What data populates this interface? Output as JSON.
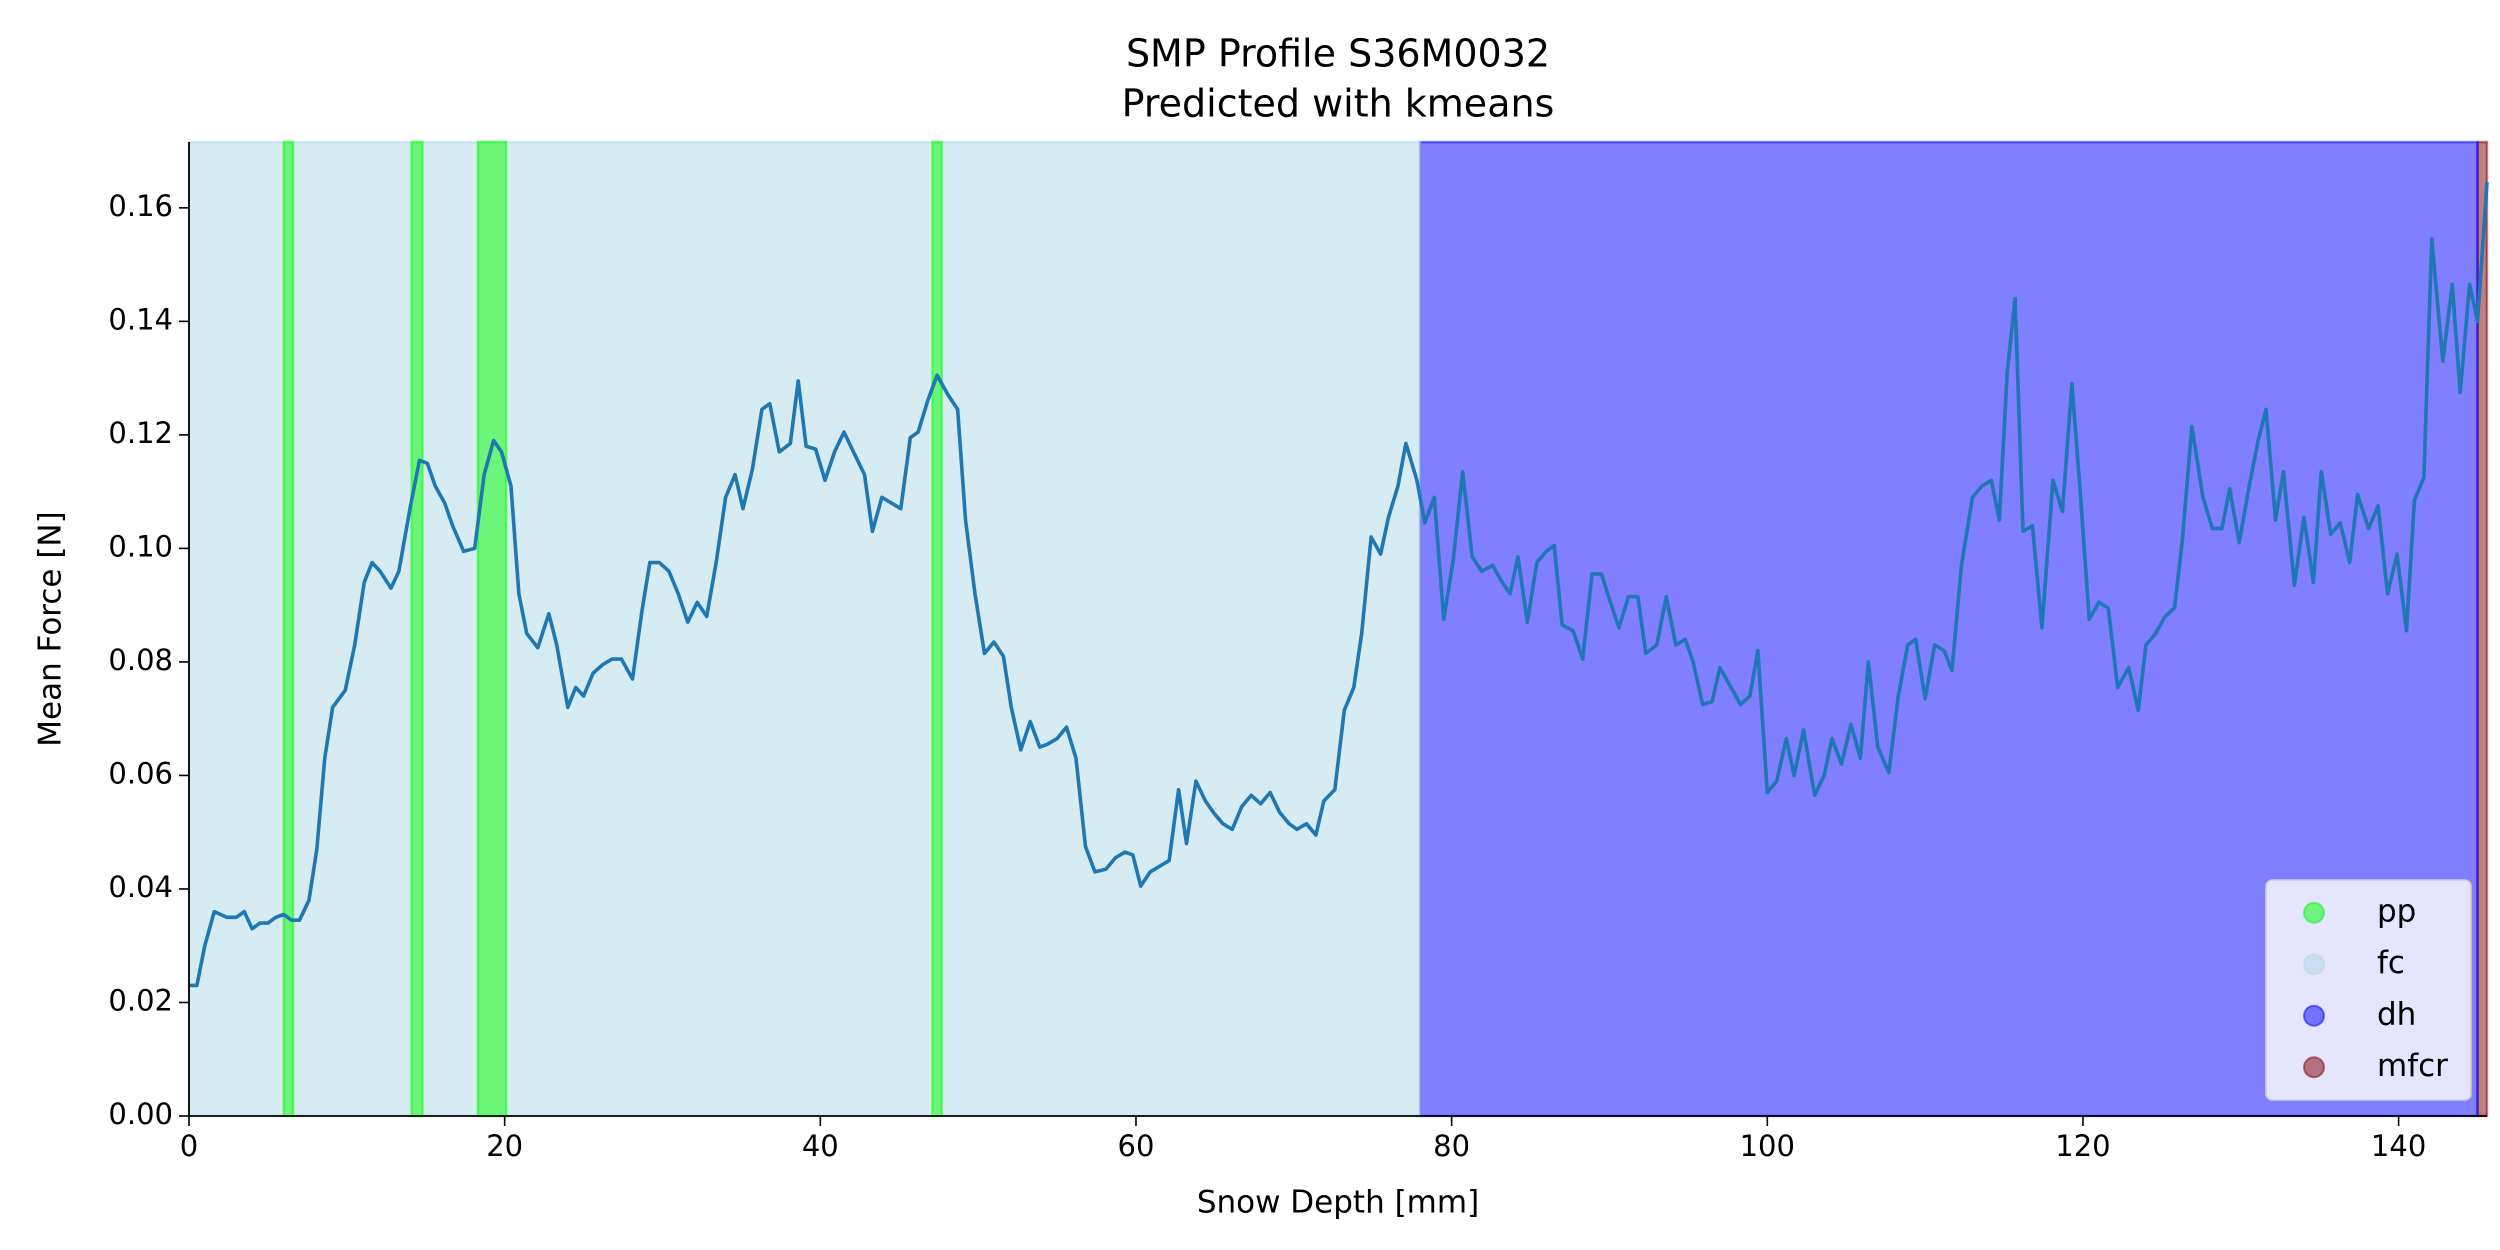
{
  "chart_data": {
    "type": "line",
    "title": "SMP Profile S36M0032",
    "subtitle": "Predicted with kmeans",
    "x_label": "Snow Depth [mm]",
    "y_label": "Mean Force [N]",
    "color": "#1f77b4",
    "legend_position": "lower right",
    "span_alpha": 0.5,
    "xlim": [
      0,
      145.6
    ],
    "ylim": [
      0,
      0.1716
    ],
    "xticks": [
      0,
      20,
      40,
      60,
      80,
      100,
      120,
      140
    ],
    "yticks": [
      {
        "value": 0,
        "label": "0.00"
      },
      {
        "value": 0.02,
        "label": "0.02"
      },
      {
        "value": 0.04,
        "label": "0.04"
      },
      {
        "value": 0.06,
        "label": "0.06"
      },
      {
        "value": 0.08,
        "label": "0.08"
      },
      {
        "value": 0.1,
        "label": "0.10"
      },
      {
        "value": 0.12,
        "label": "0.12"
      },
      {
        "value": 0.14,
        "label": "0.14"
      },
      {
        "value": 0.16,
        "label": "0.16"
      }
    ],
    "classes": [
      {
        "name": "pp",
        "color": "#00ff00",
        "spans": [
          [
            6.0,
            6.6
          ],
          [
            14.1,
            14.8
          ],
          [
            18.3,
            20.1
          ],
          [
            47.1,
            47.7
          ]
        ]
      },
      {
        "name": "fc",
        "color": "#add8e6",
        "spans": [
          [
            0,
            78.0
          ]
        ]
      },
      {
        "name": "dh",
        "color": "#0000ff",
        "spans": [
          [
            78.0,
            145.0
          ]
        ]
      },
      {
        "name": "mfcr",
        "color": "#800000",
        "spans": [
          [
            145.0,
            145.6
          ]
        ]
      }
    ],
    "x": [
      0,
      0.5,
      1.0,
      1.6,
      2.4,
      3.0,
      3.5,
      4.0,
      4.5,
      5.0,
      5.5,
      6.0,
      6.5,
      7.0,
      7.6,
      8.1,
      8.6,
      9.1,
      9.9,
      10.5,
      11.1,
      11.6,
      12.1,
      12.8,
      13.3,
      14.0,
      14.6,
      15.1,
      15.6,
      16.2,
      16.7,
      17.4,
      18.1,
      18.7,
      19.3,
      19.8,
      20.4,
      20.9,
      21.4,
      22.1,
      22.8,
      23.3,
      24.0,
      24.5,
      25.0,
      25.6,
      26.2,
      26.8,
      27.4,
      28.1,
      28.7,
      29.2,
      29.8,
      30.4,
      31.0,
      31.6,
      32.2,
      32.8,
      33.4,
      34.0,
      34.6,
      35.1,
      35.7,
      36.3,
      36.8,
      37.4,
      38.1,
      38.6,
      39.1,
      39.7,
      40.3,
      40.9,
      41.5,
      42.1,
      42.8,
      43.3,
      43.9,
      44.5,
      45.1,
      45.7,
      46.2,
      46.8,
      47.4,
      48.1,
      48.7,
      49.2,
      49.8,
      50.4,
      51.0,
      51.6,
      52.1,
      52.7,
      53.3,
      53.9,
      54.4,
      55.0,
      55.6,
      56.2,
      56.8,
      57.4,
      58.1,
      58.7,
      59.3,
      59.8,
      60.3,
      60.9,
      61.5,
      62.1,
      62.7,
      63.2,
      63.8,
      64.4,
      64.9,
      65.5,
      66.1,
      66.7,
      67.3,
      67.9,
      68.5,
      69.1,
      69.7,
      70.2,
      70.8,
      71.4,
      71.9,
      72.6,
      73.2,
      73.8,
      74.3,
      74.9,
      75.5,
      76.0,
      76.6,
      77.1,
      77.8,
      78.3,
      78.9,
      79.5,
      80.1,
      80.7,
      81.3,
      81.9,
      82.6,
      83.1,
      83.7,
      84.2,
      84.8,
      85.4,
      86.0,
      86.5,
      87.0,
      87.7,
      88.3,
      88.9,
      89.5,
      90.0,
      90.6,
      91.2,
      91.8,
      92.3,
      93.0,
      93.6,
      94.2,
      94.8,
      95.3,
      95.9,
      96.5,
      97.0,
      97.7,
      98.3,
      98.9,
      99.4,
      100.0,
      100.6,
      101.2,
      101.7,
      102.3,
      103.0,
      103.6,
      104.1,
      104.7,
      105.3,
      105.9,
      106.4,
      107.0,
      107.7,
      108.3,
      108.9,
      109.4,
      110.0,
      110.6,
      111.2,
      111.7,
      112.3,
      113.0,
      113.6,
      114.2,
      114.7,
      115.2,
      115.7,
      116.2,
      116.8,
      117.4,
      118.1,
      118.7,
      119.3,
      119.8,
      120.4,
      121.0,
      121.6,
      122.2,
      122.9,
      123.5,
      124.0,
      124.6,
      125.2,
      125.8,
      126.3,
      126.9,
      127.6,
      128.2,
      128.8,
      129.3,
      129.9,
      130.5,
      131.1,
      131.6,
      132.2,
      132.7,
      133.4,
      134.0,
      134.6,
      135.1,
      135.7,
      136.3,
      136.9,
      137.4,
      138.1,
      138.7,
      139.3,
      139.9,
      140.5,
      141.0,
      141.6,
      142.1,
      142.8,
      143.4,
      143.9,
      144.5,
      145.0,
      145.6
    ],
    "values": [
      0.023,
      0.023,
      0.03,
      0.036,
      0.035,
      0.035,
      0.036,
      0.033,
      0.034,
      0.034,
      0.035,
      0.0355,
      0.0345,
      0.0345,
      0.038,
      0.047,
      0.063,
      0.072,
      0.075,
      0.083,
      0.094,
      0.0975,
      0.096,
      0.093,
      0.096,
      0.107,
      0.1155,
      0.115,
      0.111,
      0.108,
      0.104,
      0.0995,
      0.1,
      0.113,
      0.119,
      0.117,
      0.111,
      0.092,
      0.085,
      0.0825,
      0.0885,
      0.083,
      0.072,
      0.0755,
      0.074,
      0.078,
      0.0795,
      0.0805,
      0.0805,
      0.077,
      0.089,
      0.0975,
      0.0975,
      0.096,
      0.092,
      0.087,
      0.0905,
      0.088,
      0.0975,
      0.109,
      0.113,
      0.107,
      0.114,
      0.1245,
      0.1255,
      0.117,
      0.1185,
      0.1295,
      0.118,
      0.1175,
      0.112,
      0.117,
      0.1205,
      0.117,
      0.113,
      0.103,
      0.109,
      0.108,
      0.107,
      0.1195,
      0.1205,
      0.126,
      0.1305,
      0.127,
      0.1245,
      0.105,
      0.092,
      0.0815,
      0.0835,
      0.081,
      0.072,
      0.0645,
      0.0695,
      0.065,
      0.0655,
      0.0665,
      0.0685,
      0.063,
      0.0475,
      0.043,
      0.0435,
      0.0455,
      0.0465,
      0.046,
      0.0405,
      0.043,
      0.044,
      0.045,
      0.0575,
      0.048,
      0.059,
      0.0555,
      0.0535,
      0.0515,
      0.0505,
      0.0545,
      0.0565,
      0.055,
      0.057,
      0.0535,
      0.0515,
      0.0505,
      0.0515,
      0.0495,
      0.0555,
      0.0575,
      0.0715,
      0.0755,
      0.085,
      0.102,
      0.099,
      0.1055,
      0.111,
      0.1185,
      0.112,
      0.1045,
      0.109,
      0.0875,
      0.098,
      0.1135,
      0.0985,
      0.096,
      0.097,
      0.0945,
      0.092,
      0.0985,
      0.087,
      0.0975,
      0.0995,
      0.1005,
      0.0865,
      0.0855,
      0.0805,
      0.0955,
      0.0955,
      0.091,
      0.086,
      0.0915,
      0.0915,
      0.0815,
      0.083,
      0.0915,
      0.083,
      0.084,
      0.08,
      0.0725,
      0.073,
      0.079,
      0.0755,
      0.0725,
      0.074,
      0.082,
      0.057,
      0.059,
      0.0665,
      0.06,
      0.068,
      0.0565,
      0.06,
      0.0665,
      0.062,
      0.069,
      0.063,
      0.08,
      0.065,
      0.0605,
      0.074,
      0.083,
      0.084,
      0.0735,
      0.083,
      0.082,
      0.0785,
      0.097,
      0.109,
      0.111,
      0.112,
      0.105,
      0.131,
      0.144,
      0.103,
      0.104,
      0.086,
      0.112,
      0.1065,
      0.129,
      0.111,
      0.0875,
      0.0905,
      0.0895,
      0.0755,
      0.079,
      0.0715,
      0.083,
      0.085,
      0.088,
      0.0895,
      0.1015,
      0.1215,
      0.109,
      0.1035,
      0.1035,
      0.1105,
      0.101,
      0.1105,
      0.119,
      0.1245,
      0.105,
      0.1135,
      0.0935,
      0.1055,
      0.094,
      0.1135,
      0.1025,
      0.1045,
      0.0975,
      0.1095,
      0.1035,
      0.1075,
      0.092,
      0.099,
      0.0855,
      0.1085,
      0.1125,
      0.1545,
      0.133,
      0.1465,
      0.1275,
      0.1465,
      0.14,
      0.1645
    ]
  }
}
